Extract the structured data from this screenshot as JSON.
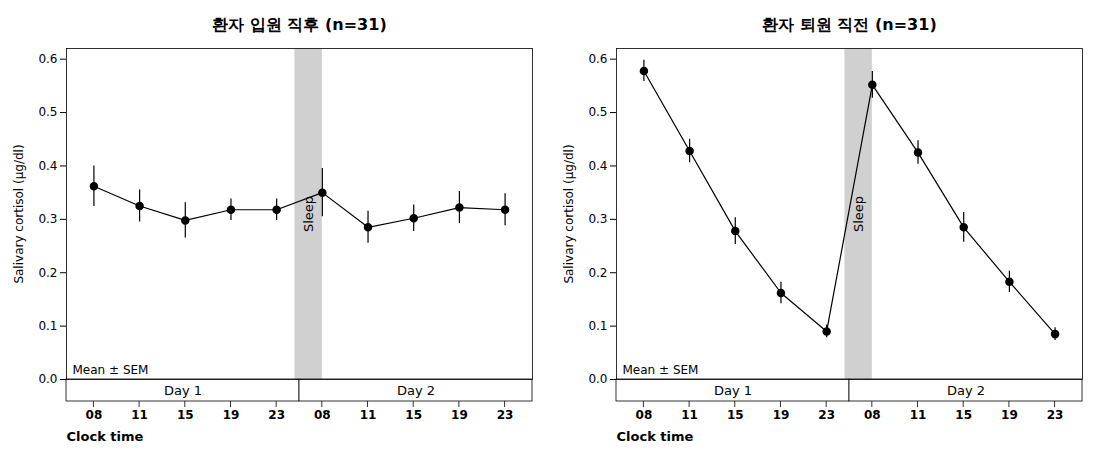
{
  "chart_data": [
    {
      "type": "line",
      "title": "환자 입원 직후 (n=31)",
      "categories": [
        "08",
        "11",
        "15",
        "19",
        "23",
        "08",
        "11",
        "15",
        "19",
        "23"
      ],
      "days": [
        "Day 1",
        "Day 1",
        "Day 1",
        "Day 1",
        "Day 1",
        "Day 2",
        "Day 2",
        "Day 2",
        "Day 2",
        "Day 2"
      ],
      "values": [
        0.362,
        0.325,
        0.298,
        0.318,
        0.318,
        0.35,
        0.285,
        0.302,
        0.322,
        0.318
      ],
      "errors": [
        0.038,
        0.03,
        0.033,
        0.02,
        0.02,
        0.045,
        0.03,
        0.025,
        0.03,
        0.03
      ],
      "xlabel": "Clock time",
      "ylabel": "Salivary cortisol (μg/dl)",
      "ylim": [
        0.0,
        0.62
      ],
      "yticks": [
        {
          "value": 0.0,
          "label": "0.0"
        },
        0.1,
        0.2,
        0.3,
        0.4,
        0.5,
        0.6
      ],
      "color": "#000000",
      "marker": "circle",
      "sleep_band": {
        "label": "Sleep",
        "color": "#d0d0d0"
      },
      "annotations": [
        "Mean ± SEM"
      ]
    },
    {
      "type": "line",
      "title": "환자 퇴원 직전 (n=31)",
      "categories": [
        "08",
        "11",
        "15",
        "19",
        "23",
        "08",
        "11",
        "15",
        "19",
        "23"
      ],
      "days": [
        "Day 1",
        "Day 1",
        "Day 1",
        "Day 1",
        "Day 1",
        "Day 2",
        "Day 2",
        "Day 2",
        "Day 2",
        "Day 2"
      ],
      "values": [
        0.578,
        0.428,
        0.278,
        0.162,
        0.09,
        0.552,
        0.425,
        0.285,
        0.183,
        0.085
      ],
      "errors": [
        0.02,
        0.022,
        0.025,
        0.02,
        0.012,
        0.025,
        0.022,
        0.028,
        0.02,
        0.012
      ],
      "xlabel": "Clock time",
      "ylabel": "Salivary cortisol (μg/dl)",
      "ylim": [
        0.0,
        0.62
      ],
      "yticks": [
        {
          "value": 0.0,
          "label": "0.0"
        },
        0.1,
        0.2,
        0.3,
        0.4,
        0.5,
        0.6
      ],
      "color": "#000000",
      "marker": "circle",
      "sleep_band": {
        "label": "Sleep",
        "color": "#d0d0d0"
      },
      "annotations": [
        "Mean ± SEM"
      ]
    }
  ]
}
